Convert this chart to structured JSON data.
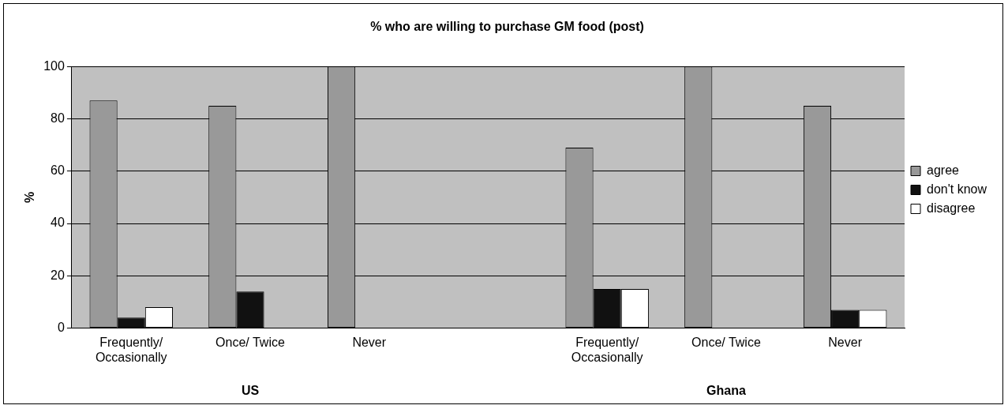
{
  "chart_data": {
    "type": "bar",
    "title": "% who are willing to purchase GM food (post)",
    "ylabel": "%",
    "categories": [
      "Frequently/ Occasionally",
      "Once/ Twice",
      "Never",
      null,
      "Frequently/ Occasionally",
      "Once/ Twice",
      "Never"
    ],
    "series": [
      {
        "name": "agree",
        "color": "#999999",
        "values": [
          87,
          85,
          100,
          null,
          69,
          100,
          85
        ]
      },
      {
        "name": "don't know",
        "color": "#111111",
        "values": [
          4,
          14,
          0,
          null,
          15,
          0,
          7
        ]
      },
      {
        "name": "disagree",
        "color": "#ffffff",
        "values": [
          8,
          0,
          0,
          null,
          15,
          0,
          7
        ]
      }
    ],
    "ylim": [
      0,
      100
    ],
    "yticks": [
      0,
      20,
      40,
      60,
      80,
      100
    ],
    "grid": "y",
    "legend": "right",
    "annotations": [
      "US",
      "Ghana"
    ]
  }
}
